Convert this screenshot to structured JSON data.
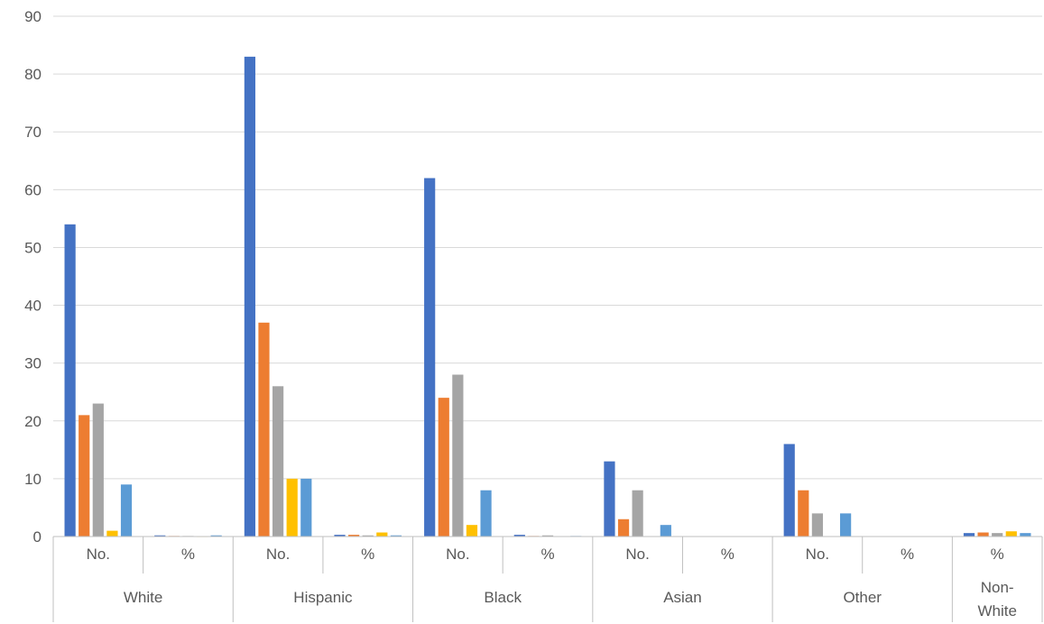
{
  "chart_data": {
    "type": "bar",
    "title": "",
    "xlabel": "",
    "ylabel": "",
    "ylim": [
      0,
      90
    ],
    "yticks": [
      0,
      10,
      20,
      30,
      40,
      50,
      60,
      70,
      80,
      90
    ],
    "grid": true,
    "legend": "none",
    "groups": [
      {
        "name": "White",
        "subcategories": [
          "No.",
          "%"
        ]
      },
      {
        "name": "Hispanic",
        "subcategories": [
          "No.",
          "%"
        ]
      },
      {
        "name": "Black",
        "subcategories": [
          "No.",
          "%"
        ]
      },
      {
        "name": "Asian",
        "subcategories": [
          "No.",
          "%"
        ]
      },
      {
        "name": "Other",
        "subcategories": [
          "No.",
          "%"
        ]
      },
      {
        "name": "Non-White",
        "subcategories": [
          "%"
        ]
      }
    ],
    "categories": [
      "White No.",
      "White %",
      "Hispanic No.",
      "Hispanic %",
      "Black No.",
      "Black %",
      "Asian No.",
      "Asian %",
      "Other No.",
      "Other %",
      "Non-White %"
    ],
    "series": [
      {
        "color": "#4472C4",
        "values": [
          54,
          0.2,
          83,
          0.3,
          62,
          0.3,
          13,
          0,
          16,
          0,
          0.6
        ]
      },
      {
        "color": "#ED7D31",
        "values": [
          21,
          0.1,
          37,
          0.3,
          24,
          0.1,
          3,
          0,
          8,
          0,
          0.7
        ]
      },
      {
        "color": "#A5A5A5",
        "values": [
          23,
          0.1,
          26,
          0.2,
          28,
          0.2,
          8,
          0,
          4,
          0,
          0.6
        ]
      },
      {
        "color": "#FFC000",
        "values": [
          1,
          0.01,
          10,
          0.7,
          2,
          0.03,
          0,
          0,
          0,
          0,
          0.9
        ]
      },
      {
        "color": "#5B9BD5",
        "values": [
          9,
          0.2,
          10,
          0.2,
          8,
          0.1,
          2,
          0,
          4,
          0,
          0.6
        ]
      }
    ],
    "colors": {
      "grid": "#D9D9D9",
      "axis": "#BFBFBF",
      "text": "#595959"
    }
  }
}
